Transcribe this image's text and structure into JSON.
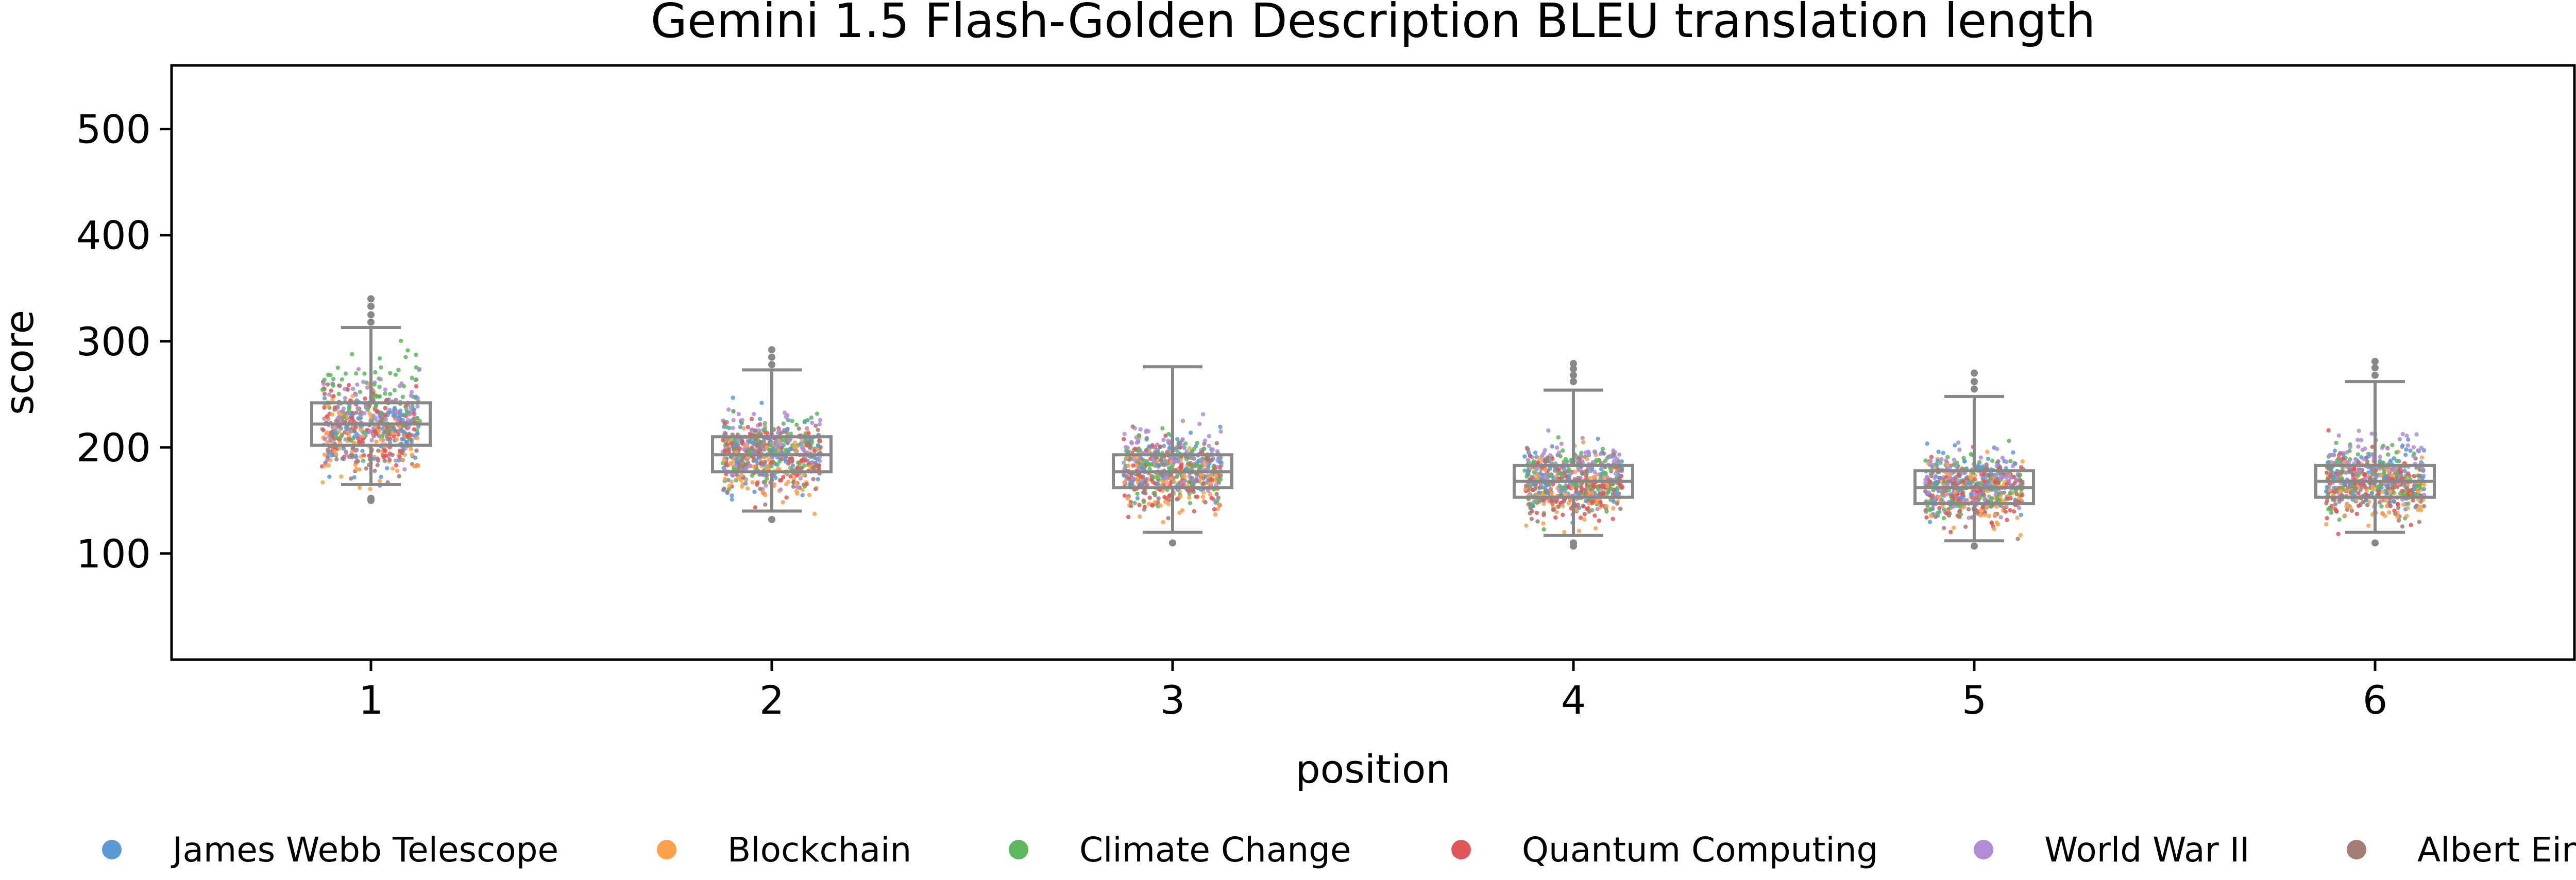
{
  "chart_data": {
    "type": "box-strip",
    "title": "Gemini 1.5 Flash-Golden Description BLEU translation length",
    "xlabel": "position",
    "ylabel": "score",
    "categories": [
      "1",
      "2",
      "3",
      "4",
      "5",
      "6"
    ],
    "ylim": [
      0,
      560
    ],
    "yticks": [
      100,
      200,
      300,
      400,
      500
    ],
    "grid": false,
    "legend_position": "bottom",
    "boxes": [
      {
        "category": "1",
        "whisker_low": 165,
        "q1": 202,
        "median": 222,
        "q3": 242,
        "whisker_high": 313,
        "fliers": [
          150,
          152,
          318,
          325,
          333,
          340
        ]
      },
      {
        "category": "2",
        "whisker_low": 140,
        "q1": 177,
        "median": 193,
        "q3": 210,
        "whisker_high": 273,
        "fliers": [
          132,
          278,
          285,
          292
        ]
      },
      {
        "category": "3",
        "whisker_low": 120,
        "q1": 162,
        "median": 177,
        "q3": 193,
        "whisker_high": 276,
        "fliers": [
          110
        ]
      },
      {
        "category": "4",
        "whisker_low": 117,
        "q1": 153,
        "median": 168,
        "q3": 183,
        "whisker_high": 254,
        "fliers": [
          107,
          110,
          262,
          268,
          274,
          279
        ]
      },
      {
        "category": "5",
        "whisker_low": 112,
        "q1": 147,
        "median": 162,
        "q3": 178,
        "whisker_high": 248,
        "fliers": [
          107,
          255,
          262,
          270
        ]
      },
      {
        "category": "6",
        "whisker_low": 120,
        "q1": 153,
        "median": 168,
        "q3": 183,
        "whisker_high": 262,
        "fliers": [
          110,
          268,
          275,
          281
        ]
      }
    ],
    "series": [
      {
        "name": "James Webb Telescope",
        "color": "#5b9bd5",
        "means": [
          215,
          195,
          180,
          170,
          165,
          170
        ]
      },
      {
        "name": "Blockchain",
        "color": "#ffa04a",
        "means": [
          205,
          185,
          170,
          160,
          155,
          160
        ]
      },
      {
        "name": "Climate Change",
        "color": "#5cb85c",
        "means": [
          245,
          200,
          182,
          170,
          165,
          170
        ]
      },
      {
        "name": "Quantum Computing",
        "color": "#e15759",
        "means": [
          220,
          192,
          175,
          165,
          160,
          165
        ]
      },
      {
        "name": "World War II",
        "color": "#b08cd6",
        "means": [
          230,
          200,
          190,
          178,
          168,
          185
        ]
      },
      {
        "name": "Albert Einstein",
        "color": "#a57d75",
        "means": [
          210,
          190,
          175,
          165,
          160,
          165
        ]
      }
    ],
    "box_color": "#888888"
  }
}
